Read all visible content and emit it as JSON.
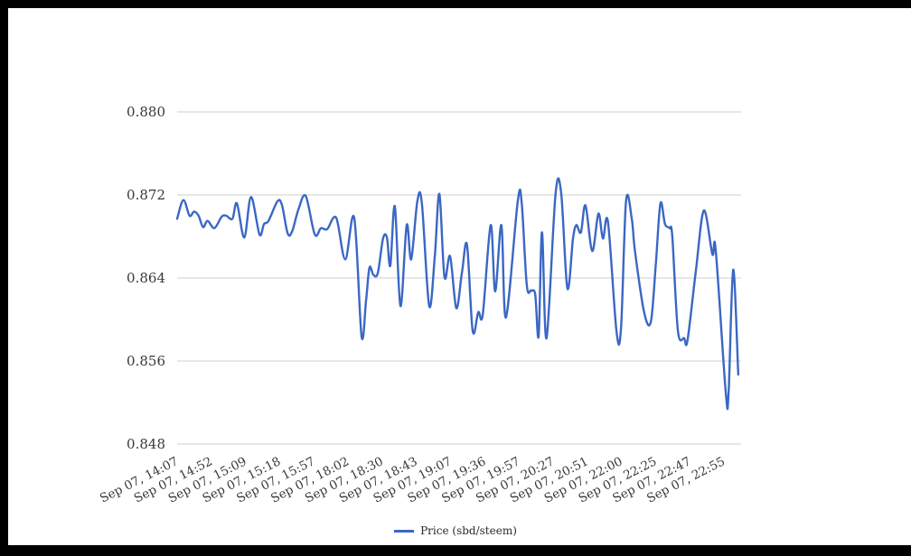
{
  "chart_data": {
    "type": "line",
    "title": "",
    "xlabel": "",
    "ylabel": "",
    "legend": "Price (sbd/steem)",
    "legend_position": "bottom-center",
    "grid": "horizontal-only",
    "ylim": [
      0.848,
      0.88
    ],
    "y_ticks": [
      {
        "label": "0.880",
        "value": 0.88
      },
      {
        "label": "0.872",
        "value": 0.872
      },
      {
        "label": "0.864",
        "value": 0.864
      },
      {
        "label": "0.856",
        "value": 0.856
      },
      {
        "label": "0.848",
        "value": 0.848
      }
    ],
    "x_tick_labels": [
      "Sep 07, 14:07",
      "Sep 07, 14:52",
      "Sep 07, 15:09",
      "Sep 07, 15:18",
      "Sep 07, 15:57",
      "Sep 07, 18:02",
      "Sep 07, 18:30",
      "Sep 07, 18:43",
      "Sep 07, 19:07",
      "Sep 07, 19:36",
      "Sep 07, 19:57",
      "Sep 07, 20:27",
      "Sep 07, 20:51",
      "Sep 07, 22:00",
      "Sep 07, 22:25",
      "Sep 07, 22:47",
      "Sep 07, 22:55"
    ],
    "series": [
      {
        "name": "Price (sbd/steem)",
        "points": [
          [
            0.0,
            0.8697
          ],
          [
            0.011,
            0.8715
          ],
          [
            0.022,
            0.87
          ],
          [
            0.03,
            0.8704
          ],
          [
            0.038,
            0.87
          ],
          [
            0.046,
            0.8689
          ],
          [
            0.054,
            0.8695
          ],
          [
            0.066,
            0.8688
          ],
          [
            0.079,
            0.8699
          ],
          [
            0.087,
            0.87
          ],
          [
            0.098,
            0.8697
          ],
          [
            0.106,
            0.8712
          ],
          [
            0.119,
            0.8679
          ],
          [
            0.131,
            0.8718
          ],
          [
            0.146,
            0.8682
          ],
          [
            0.154,
            0.8692
          ],
          [
            0.162,
            0.8695
          ],
          [
            0.178,
            0.8714
          ],
          [
            0.186,
            0.871
          ],
          [
            0.196,
            0.8683
          ],
          [
            0.204,
            0.8685
          ],
          [
            0.215,
            0.8706
          ],
          [
            0.228,
            0.8719
          ],
          [
            0.244,
            0.8682
          ],
          [
            0.255,
            0.8688
          ],
          [
            0.266,
            0.8687
          ],
          [
            0.282,
            0.8698
          ],
          [
            0.298,
            0.8658
          ],
          [
            0.314,
            0.8698
          ],
          [
            0.327,
            0.8584
          ],
          [
            0.335,
            0.8618
          ],
          [
            0.341,
            0.865
          ],
          [
            0.348,
            0.8643
          ],
          [
            0.356,
            0.8645
          ],
          [
            0.365,
            0.8678
          ],
          [
            0.372,
            0.8679
          ],
          [
            0.378,
            0.8652
          ],
          [
            0.386,
            0.8709
          ],
          [
            0.396,
            0.8613
          ],
          [
            0.407,
            0.8691
          ],
          [
            0.415,
            0.8658
          ],
          [
            0.426,
            0.8714
          ],
          [
            0.434,
            0.8712
          ],
          [
            0.447,
            0.8613
          ],
          [
            0.457,
            0.8662
          ],
          [
            0.465,
            0.8721
          ],
          [
            0.474,
            0.8641
          ],
          [
            0.484,
            0.8661
          ],
          [
            0.495,
            0.8611
          ],
          [
            0.505,
            0.8645
          ],
          [
            0.514,
            0.8672
          ],
          [
            0.524,
            0.8589
          ],
          [
            0.534,
            0.8607
          ],
          [
            0.542,
            0.8605
          ],
          [
            0.556,
            0.8691
          ],
          [
            0.564,
            0.8627
          ],
          [
            0.575,
            0.8691
          ],
          [
            0.583,
            0.8602
          ],
          [
            0.604,
            0.8714
          ],
          [
            0.611,
            0.8712
          ],
          [
            0.62,
            0.8633
          ],
          [
            0.628,
            0.8628
          ],
          [
            0.635,
            0.8624
          ],
          [
            0.641,
            0.8584
          ],
          [
            0.647,
            0.8684
          ],
          [
            0.655,
            0.8582
          ],
          [
            0.671,
            0.8721
          ],
          [
            0.681,
            0.8722
          ],
          [
            0.692,
            0.863
          ],
          [
            0.702,
            0.8678
          ],
          [
            0.708,
            0.8691
          ],
          [
            0.716,
            0.8684
          ],
          [
            0.724,
            0.871
          ],
          [
            0.736,
            0.8666
          ],
          [
            0.747,
            0.8702
          ],
          [
            0.755,
            0.8678
          ],
          [
            0.764,
            0.8694
          ],
          [
            0.779,
            0.8589
          ],
          [
            0.787,
            0.8591
          ],
          [
            0.796,
            0.8714
          ],
          [
            0.806,
            0.8698
          ],
          [
            0.812,
            0.8665
          ],
          [
            0.828,
            0.8607
          ],
          [
            0.84,
            0.8598
          ],
          [
            0.849,
            0.8655
          ],
          [
            0.857,
            0.8712
          ],
          [
            0.865,
            0.8692
          ],
          [
            0.873,
            0.8688
          ],
          [
            0.878,
            0.868
          ],
          [
            0.888,
            0.8589
          ],
          [
            0.899,
            0.8582
          ],
          [
            0.905,
            0.858
          ],
          [
            0.92,
            0.8648
          ],
          [
            0.934,
            0.8705
          ],
          [
            0.949,
            0.8663
          ],
          [
            0.955,
            0.8667
          ],
          [
            0.973,
            0.8528
          ],
          [
            0.978,
            0.8532
          ],
          [
            0.986,
            0.8648
          ],
          [
            0.995,
            0.8547
          ]
        ]
      }
    ],
    "colors": {
      "line": "#3b67c4",
      "grid": "#cfcfcf",
      "axis_text": "#383838",
      "background": "#ffffff",
      "frame": "#000000"
    }
  }
}
